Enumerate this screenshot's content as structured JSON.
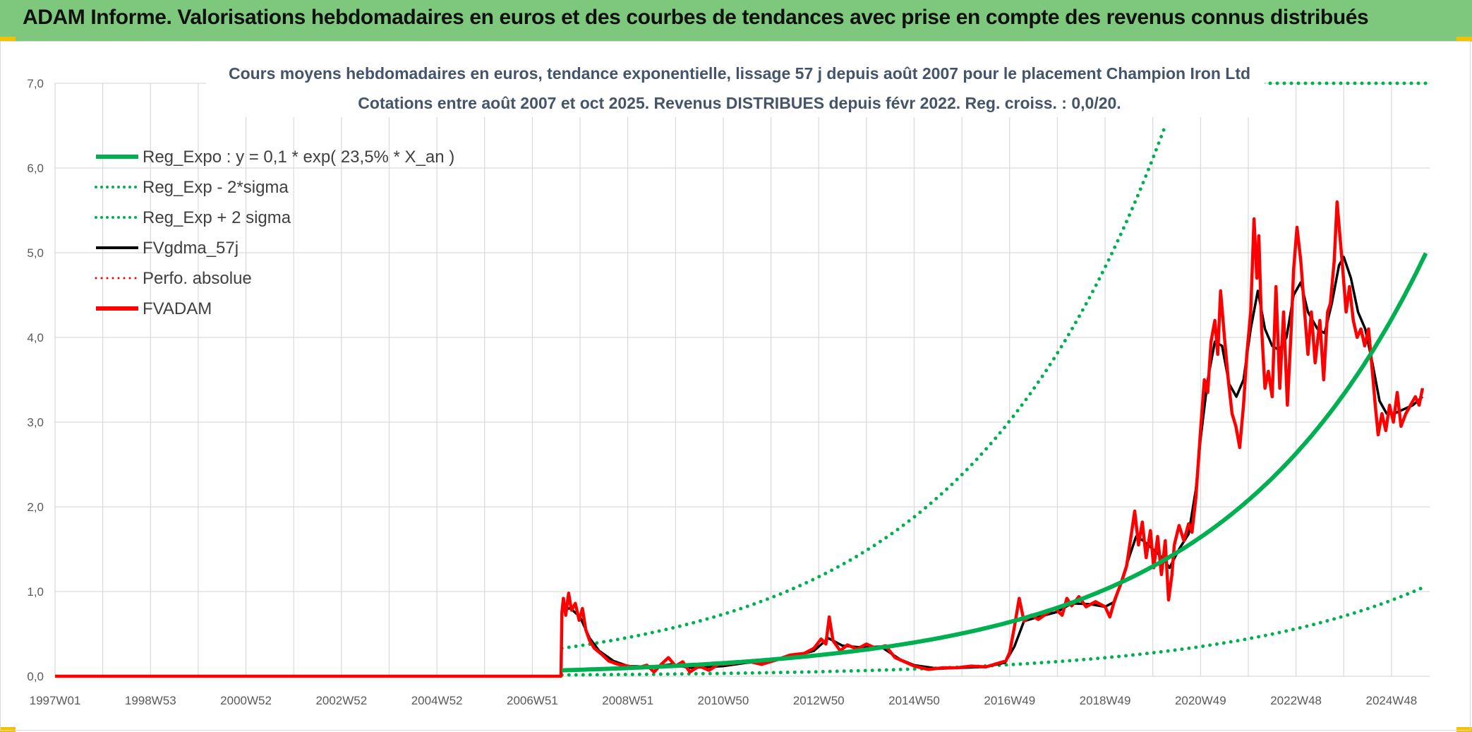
{
  "header": {
    "title": "ADAM Informe. Valorisations hebdomadaires en euros et des courbes de tendances avec prise en compte des revenus connus distribués"
  },
  "colors": {
    "banner": "#7dc87d",
    "trend": "#00b050",
    "average": "#000000",
    "price": "#ff0000",
    "grid": "#d9d9d9"
  },
  "chart_data": {
    "type": "line",
    "title_lines": [
      "Cours moyens hebdomadaires en euros, tendance exponentielle, lissage 57 j depuis août 2007 pour le placement Champion Iron Ltd",
      "Cotations entre août 2007 et oct 2025. Revenus DISTRIBUES depuis févr 2022. Reg. croiss. : 0,0/20."
    ],
    "ylim": [
      0,
      7
    ],
    "xlim": [
      1997.0,
      2025.8
    ],
    "y_ticks": [
      "0,0",
      "1,0",
      "2,0",
      "3,0",
      "4,0",
      "5,0",
      "6,0",
      "7,0"
    ],
    "x_ticks": [
      {
        "label": "1997W01",
        "x": 1997.0
      },
      {
        "label": "1998W53",
        "x": 1999.0
      },
      {
        "label": "2000W52",
        "x": 2001.0
      },
      {
        "label": "2002W52",
        "x": 2003.0
      },
      {
        "label": "2004W52",
        "x": 2005.0
      },
      {
        "label": "2006W51",
        "x": 2007.0
      },
      {
        "label": "2008W51",
        "x": 2009.0
      },
      {
        "label": "2010W50",
        "x": 2011.0
      },
      {
        "label": "2012W50",
        "x": 2013.0
      },
      {
        "label": "2014W50",
        "x": 2015.0
      },
      {
        "label": "2016W49",
        "x": 2017.0
      },
      {
        "label": "2018W49",
        "x": 2019.0
      },
      {
        "label": "2020W49",
        "x": 2021.0
      },
      {
        "label": "2022W48",
        "x": 2023.0
      },
      {
        "label": "2024W48",
        "x": 2025.0
      }
    ],
    "grid": true,
    "legend_position": "top-left",
    "legend": [
      {
        "label": "Reg_Expo : y = 0,1 * exp( 23,5% *  X_an )",
        "color": "#00b050",
        "style": "solid",
        "width": 6
      },
      {
        "label": "Reg_Exp - 2*sigma",
        "color": "#00b050",
        "style": "dotted",
        "width": 4
      },
      {
        "label": "Reg_Exp + 2 sigma",
        "color": "#00b050",
        "style": "dotted",
        "width": 4
      },
      {
        "label": "FVgdma_57j",
        "color": "#000000",
        "style": "solid",
        "width": 4
      },
      {
        "label": "Perfo. absolue",
        "color": "#ff0000",
        "style": "dotted",
        "width": 3
      },
      {
        "label": "FVADAM",
        "color": "#ff0000",
        "style": "solid",
        "width": 6
      }
    ],
    "series": [
      {
        "name": "FVADAM",
        "color": "#ff0000",
        "style": "solid",
        "width": 4.5,
        "points": [
          [
            1997.0,
            0
          ],
          [
            2007.6,
            0
          ],
          [
            2007.62,
            0.75
          ],
          [
            2007.65,
            0.92
          ],
          [
            2007.7,
            0.72
          ],
          [
            2007.76,
            0.98
          ],
          [
            2007.82,
            0.78
          ],
          [
            2007.9,
            0.86
          ],
          [
            2007.98,
            0.66
          ],
          [
            2008.05,
            0.8
          ],
          [
            2008.12,
            0.55
          ],
          [
            2008.2,
            0.42
          ],
          [
            2008.3,
            0.33
          ],
          [
            2008.45,
            0.26
          ],
          [
            2008.6,
            0.18
          ],
          [
            2008.8,
            0.14
          ],
          [
            2009.0,
            0.12
          ],
          [
            2009.2,
            0.1
          ],
          [
            2009.4,
            0.13
          ],
          [
            2009.55,
            0.05
          ],
          [
            2009.7,
            0.14
          ],
          [
            2009.85,
            0.22
          ],
          [
            2010.0,
            0.12
          ],
          [
            2010.15,
            0.17
          ],
          [
            2010.3,
            0.05
          ],
          [
            2010.5,
            0.12
          ],
          [
            2010.7,
            0.07
          ],
          [
            2010.9,
            0.14
          ],
          [
            2011.2,
            0.15
          ],
          [
            2011.5,
            0.18
          ],
          [
            2011.8,
            0.14
          ],
          [
            2012.1,
            0.19
          ],
          [
            2012.4,
            0.25
          ],
          [
            2012.7,
            0.27
          ],
          [
            2012.9,
            0.33
          ],
          [
            2013.05,
            0.44
          ],
          [
            2013.15,
            0.38
          ],
          [
            2013.22,
            0.7
          ],
          [
            2013.3,
            0.42
          ],
          [
            2013.45,
            0.3
          ],
          [
            2013.6,
            0.37
          ],
          [
            2013.8,
            0.32
          ],
          [
            2014.0,
            0.38
          ],
          [
            2014.2,
            0.33
          ],
          [
            2014.4,
            0.36
          ],
          [
            2014.6,
            0.22
          ],
          [
            2014.8,
            0.17
          ],
          [
            2015.0,
            0.12
          ],
          [
            2015.3,
            0.08
          ],
          [
            2015.6,
            0.1
          ],
          [
            2015.9,
            0.1
          ],
          [
            2016.2,
            0.12
          ],
          [
            2016.5,
            0.11
          ],
          [
            2016.8,
            0.16
          ],
          [
            2016.92,
            0.18
          ],
          [
            2017.0,
            0.28
          ],
          [
            2017.1,
            0.58
          ],
          [
            2017.2,
            0.92
          ],
          [
            2017.3,
            0.65
          ],
          [
            2017.45,
            0.72
          ],
          [
            2017.6,
            0.67
          ],
          [
            2017.8,
            0.75
          ],
          [
            2017.95,
            0.8
          ],
          [
            2018.1,
            0.72
          ],
          [
            2018.2,
            0.92
          ],
          [
            2018.3,
            0.83
          ],
          [
            2018.45,
            0.94
          ],
          [
            2018.6,
            0.82
          ],
          [
            2018.8,
            0.88
          ],
          [
            2019.0,
            0.82
          ],
          [
            2019.1,
            0.7
          ],
          [
            2019.2,
            0.9
          ],
          [
            2019.35,
            1.12
          ],
          [
            2019.45,
            1.3
          ],
          [
            2019.55,
            1.68
          ],
          [
            2019.62,
            1.95
          ],
          [
            2019.7,
            1.55
          ],
          [
            2019.78,
            1.82
          ],
          [
            2019.86,
            1.4
          ],
          [
            2019.95,
            1.72
          ],
          [
            2020.02,
            1.28
          ],
          [
            2020.1,
            1.65
          ],
          [
            2020.18,
            1.2
          ],
          [
            2020.26,
            1.6
          ],
          [
            2020.33,
            0.9
          ],
          [
            2020.4,
            1.2
          ],
          [
            2020.45,
            1.55
          ],
          [
            2020.55,
            1.78
          ],
          [
            2020.65,
            1.6
          ],
          [
            2020.75,
            1.8
          ],
          [
            2020.82,
            1.7
          ],
          [
            2020.9,
            2.1
          ],
          [
            2021.0,
            2.9
          ],
          [
            2021.08,
            3.5
          ],
          [
            2021.15,
            3.35
          ],
          [
            2021.22,
            3.95
          ],
          [
            2021.3,
            4.2
          ],
          [
            2021.36,
            3.8
          ],
          [
            2021.42,
            4.55
          ],
          [
            2021.5,
            4.0
          ],
          [
            2021.58,
            3.5
          ],
          [
            2021.66,
            3.1
          ],
          [
            2021.74,
            2.95
          ],
          [
            2021.82,
            2.7
          ],
          [
            2021.9,
            3.2
          ],
          [
            2021.97,
            3.8
          ],
          [
            2022.05,
            4.3
          ],
          [
            2022.12,
            5.4
          ],
          [
            2022.18,
            4.7
          ],
          [
            2022.22,
            5.2
          ],
          [
            2022.28,
            4.1
          ],
          [
            2022.35,
            3.4
          ],
          [
            2022.42,
            3.6
          ],
          [
            2022.5,
            3.3
          ],
          [
            2022.58,
            4.6
          ],
          [
            2022.66,
            3.4
          ],
          [
            2022.74,
            4.3
          ],
          [
            2022.82,
            3.2
          ],
          [
            2022.9,
            4.1
          ],
          [
            2022.95,
            4.8
          ],
          [
            2023.02,
            5.3
          ],
          [
            2023.1,
            4.9
          ],
          [
            2023.18,
            4.3
          ],
          [
            2023.25,
            3.8
          ],
          [
            2023.32,
            4.3
          ],
          [
            2023.4,
            3.7
          ],
          [
            2023.5,
            4.2
          ],
          [
            2023.58,
            3.5
          ],
          [
            2023.66,
            4.3
          ],
          [
            2023.72,
            4.4
          ],
          [
            2023.8,
            4.9
          ],
          [
            2023.86,
            5.6
          ],
          [
            2023.92,
            5.2
          ],
          [
            2023.98,
            4.8
          ],
          [
            2024.05,
            4.3
          ],
          [
            2024.12,
            4.6
          ],
          [
            2024.2,
            4.2
          ],
          [
            2024.28,
            4.0
          ],
          [
            2024.36,
            4.1
          ],
          [
            2024.44,
            3.9
          ],
          [
            2024.52,
            4.1
          ],
          [
            2024.6,
            3.6
          ],
          [
            2024.66,
            3.2
          ],
          [
            2024.72,
            2.85
          ],
          [
            2024.8,
            3.1
          ],
          [
            2024.88,
            2.9
          ],
          [
            2024.96,
            3.2
          ],
          [
            2025.04,
            3.0
          ],
          [
            2025.12,
            3.35
          ],
          [
            2025.2,
            2.95
          ],
          [
            2025.3,
            3.1
          ],
          [
            2025.4,
            3.2
          ],
          [
            2025.5,
            3.3
          ],
          [
            2025.58,
            3.2
          ],
          [
            2025.65,
            3.4
          ]
        ]
      },
      {
        "name": "FVgdma_57j",
        "color": "#000000",
        "style": "solid",
        "width": 3.5,
        "points": [
          [
            2007.62,
            0.8
          ],
          [
            2007.8,
            0.8
          ],
          [
            2008.0,
            0.7
          ],
          [
            2008.2,
            0.45
          ],
          [
            2008.4,
            0.3
          ],
          [
            2008.7,
            0.18
          ],
          [
            2009.0,
            0.12
          ],
          [
            2009.5,
            0.11
          ],
          [
            2009.9,
            0.14
          ],
          [
            2010.3,
            0.1
          ],
          [
            2010.7,
            0.11
          ],
          [
            2011.0,
            0.12
          ],
          [
            2011.5,
            0.16
          ],
          [
            2012.0,
            0.18
          ],
          [
            2012.5,
            0.24
          ],
          [
            2012.9,
            0.3
          ],
          [
            2013.2,
            0.45
          ],
          [
            2013.5,
            0.36
          ],
          [
            2013.9,
            0.34
          ],
          [
            2014.3,
            0.35
          ],
          [
            2014.7,
            0.2
          ],
          [
            2015.0,
            0.13
          ],
          [
            2015.5,
            0.09
          ],
          [
            2016.0,
            0.1
          ],
          [
            2016.5,
            0.11
          ],
          [
            2016.9,
            0.16
          ],
          [
            2017.1,
            0.35
          ],
          [
            2017.3,
            0.65
          ],
          [
            2017.6,
            0.7
          ],
          [
            2018.0,
            0.76
          ],
          [
            2018.3,
            0.86
          ],
          [
            2018.7,
            0.85
          ],
          [
            2019.0,
            0.82
          ],
          [
            2019.2,
            0.88
          ],
          [
            2019.5,
            1.4
          ],
          [
            2019.65,
            1.65
          ],
          [
            2019.8,
            1.6
          ],
          [
            2020.0,
            1.5
          ],
          [
            2020.2,
            1.4
          ],
          [
            2020.35,
            1.28
          ],
          [
            2020.55,
            1.5
          ],
          [
            2020.75,
            1.68
          ],
          [
            2020.9,
            2.2
          ],
          [
            2021.0,
            2.8
          ],
          [
            2021.15,
            3.5
          ],
          [
            2021.3,
            3.95
          ],
          [
            2021.45,
            3.9
          ],
          [
            2021.6,
            3.45
          ],
          [
            2021.75,
            3.3
          ],
          [
            2021.9,
            3.5
          ],
          [
            2022.05,
            4.1
          ],
          [
            2022.2,
            4.55
          ],
          [
            2022.35,
            4.1
          ],
          [
            2022.5,
            3.9
          ],
          [
            2022.65,
            3.85
          ],
          [
            2022.8,
            4.0
          ],
          [
            2022.95,
            4.5
          ],
          [
            2023.1,
            4.65
          ],
          [
            2023.25,
            4.3
          ],
          [
            2023.45,
            4.1
          ],
          [
            2023.6,
            4.05
          ],
          [
            2023.75,
            4.4
          ],
          [
            2023.9,
            4.85
          ],
          [
            2024.0,
            4.95
          ],
          [
            2024.15,
            4.7
          ],
          [
            2024.3,
            4.3
          ],
          [
            2024.45,
            4.1
          ],
          [
            2024.6,
            3.7
          ],
          [
            2024.75,
            3.25
          ],
          [
            2024.9,
            3.1
          ],
          [
            2025.05,
            3.1
          ],
          [
            2025.25,
            3.15
          ],
          [
            2025.45,
            3.2
          ],
          [
            2025.65,
            3.3
          ]
        ]
      }
    ],
    "trend": {
      "name": "Reg_Expo : y = 0,1 * exp( 23,5% *  X_an )",
      "color": "#00b050",
      "start_x": 2007.62,
      "end_x": 2025.75,
      "start_y": 0.07,
      "end_y": 5.03,
      "upper_start_y": 0.33,
      "upper_clip_y": 6.55,
      "lower_start_y": 0.015,
      "lower_end_y": 1.07
    }
  }
}
